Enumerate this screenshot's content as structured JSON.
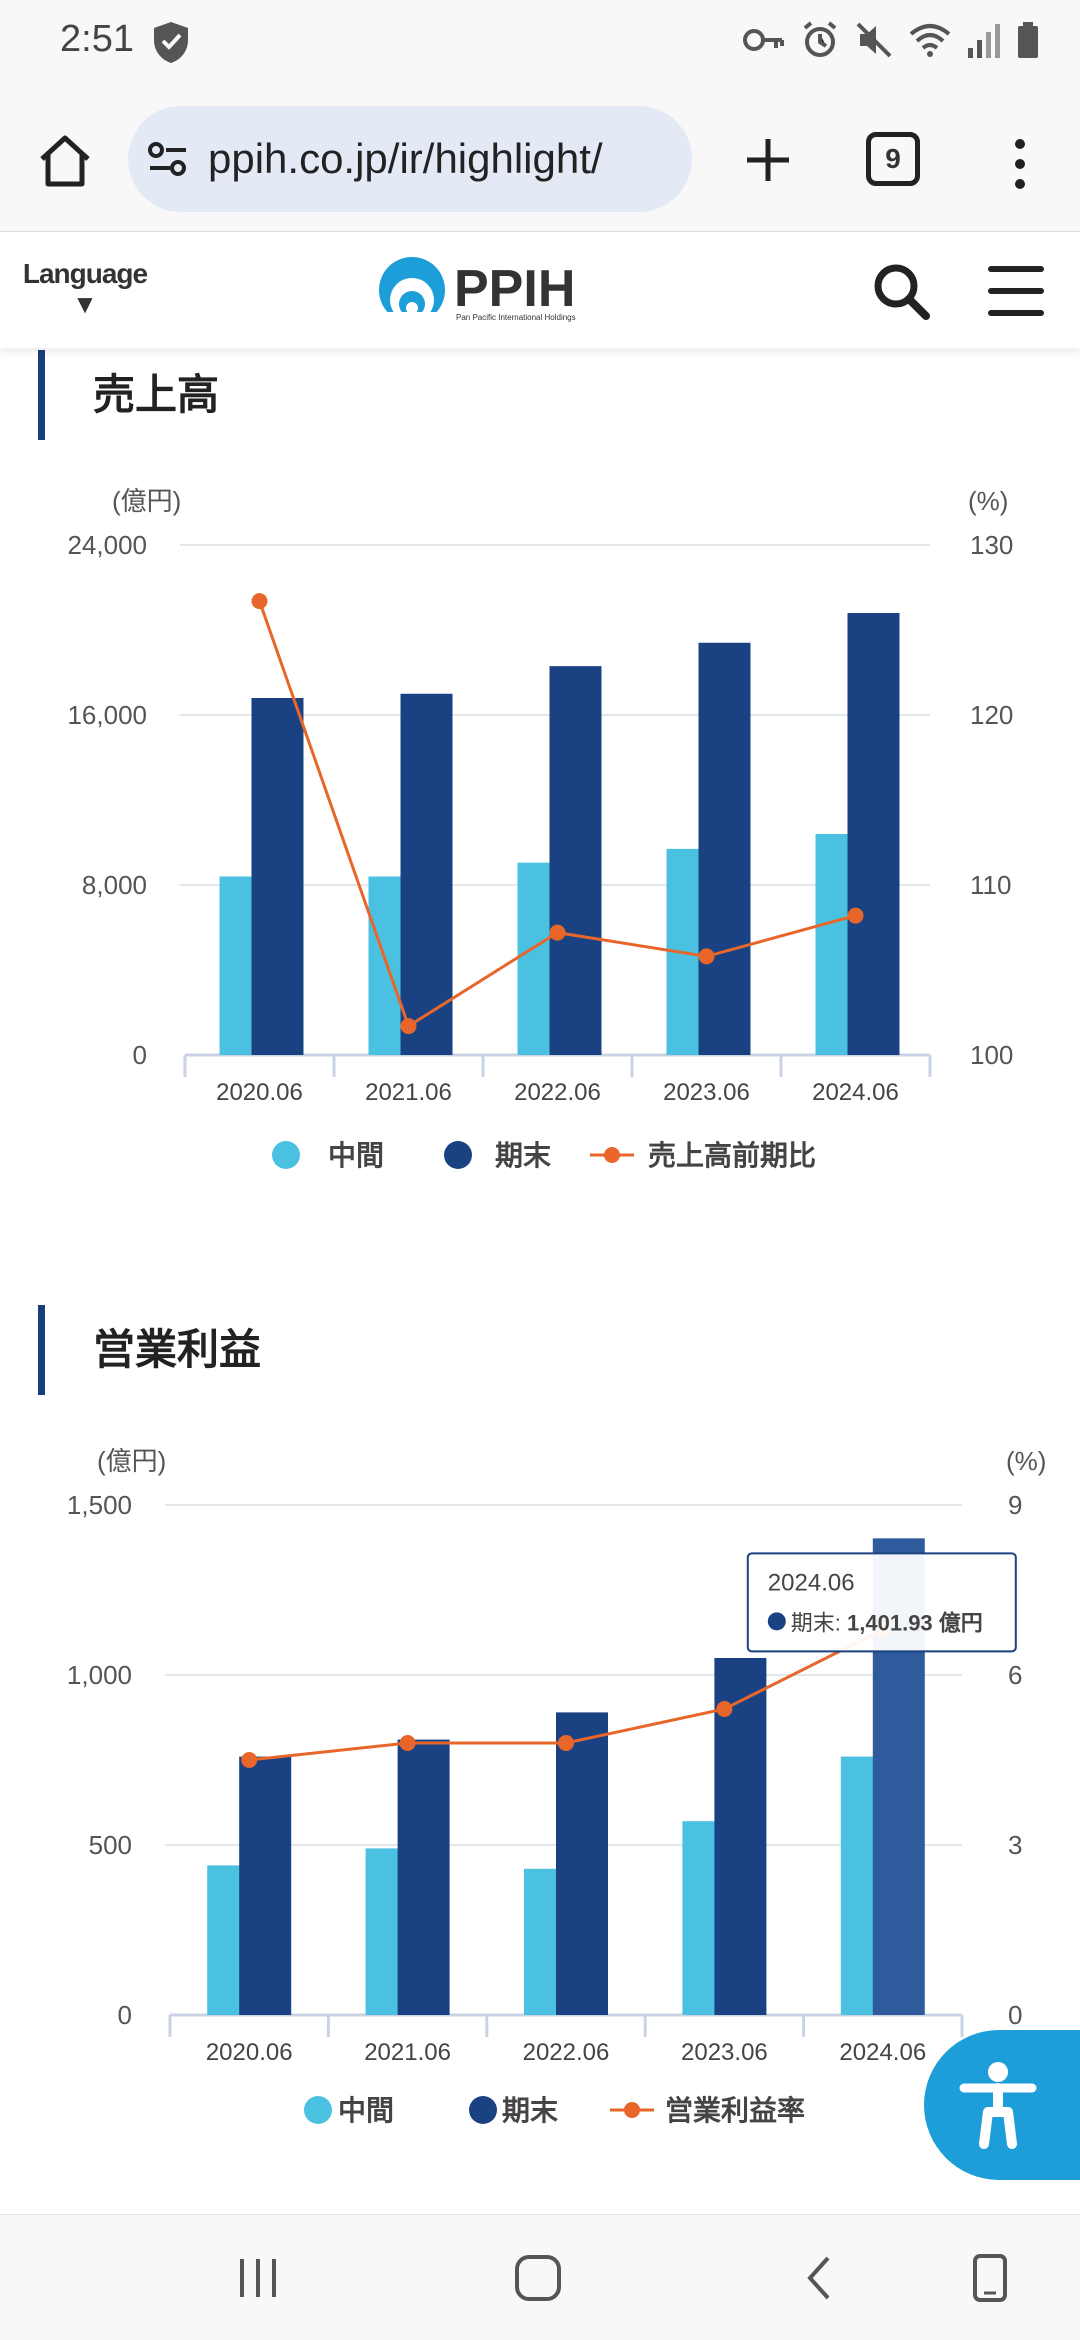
{
  "status_bar": {
    "time": "2:51",
    "icons": [
      "shield-icon",
      "key-icon",
      "alarm-icon",
      "mute-icon",
      "wifi-icon",
      "signal-icon",
      "battery-icon"
    ]
  },
  "browser": {
    "url": "ppih.co.jp/ir/highlight/",
    "tab_count": "9",
    "icons": [
      "home-icon",
      "page-info-icon",
      "new-tab-icon",
      "tab-switcher-icon",
      "more-menu-icon"
    ]
  },
  "site_header": {
    "language_label": "Language",
    "language_arrow": "▼",
    "logo_text": "PPIH",
    "logo_subtext": "Pan Pacific International Holdings",
    "icons": [
      "search-icon",
      "hamburger-menu-icon"
    ]
  },
  "sections": [
    {
      "title": "売上高"
    },
    {
      "title": "営業利益"
    }
  ],
  "chart_data": [
    {
      "type": "bar",
      "title": "売上高",
      "left_unit": "(億円)",
      "right_unit": "(%)",
      "categories": [
        "2020.06",
        "2021.06",
        "2022.06",
        "2023.06",
        "2024.06"
      ],
      "left_ticks": [
        "24,000",
        "16,000",
        "8,000",
        "0"
      ],
      "right_ticks": [
        "130",
        "120",
        "110",
        "100"
      ],
      "ylim": [
        0,
        24000
      ],
      "y2lim": [
        100,
        130
      ],
      "series": [
        {
          "name": "中間",
          "type": "bar",
          "axis": "left",
          "color": "#4bc1e2",
          "values": [
            8400,
            8400,
            9050,
            9700,
            10400
          ]
        },
        {
          "name": "期末",
          "type": "bar",
          "axis": "left",
          "color": "#1a4282",
          "values": [
            16800,
            17000,
            18300,
            19400,
            20800
          ]
        },
        {
          "name": "売上高前期比",
          "type": "line",
          "axis": "right",
          "color": "#e8662a",
          "values": [
            126.7,
            101.7,
            107.2,
            105.8,
            108.2
          ]
        }
      ],
      "grid": true,
      "legend_position": "bottom"
    },
    {
      "type": "bar",
      "title": "営業利益",
      "left_unit": "(億円)",
      "right_unit": "(%)",
      "categories": [
        "2020.06",
        "2021.06",
        "2022.06",
        "2023.06",
        "2024.06"
      ],
      "left_ticks": [
        "1,500",
        "1,000",
        "500",
        "0"
      ],
      "right_ticks": [
        "9",
        "6",
        "3",
        "0"
      ],
      "ylim": [
        0,
        1500
      ],
      "y2lim": [
        0,
        9
      ],
      "series": [
        {
          "name": "中間",
          "type": "bar",
          "axis": "left",
          "color": "#4bc1e2",
          "values": [
            440,
            490,
            430,
            570,
            760
          ]
        },
        {
          "name": "期末",
          "type": "bar",
          "axis": "left",
          "color": "#1a4282",
          "values": [
            760,
            810,
            890,
            1050,
            1401.93
          ]
        },
        {
          "name": "営業利益率",
          "type": "line",
          "axis": "right",
          "color": "#e8662a",
          "values": [
            4.5,
            4.8,
            4.8,
            5.4,
            6.8
          ]
        }
      ],
      "grid": true,
      "legend_position": "bottom",
      "tooltip": {
        "title": "2024.06",
        "label": "期末: ",
        "value": "1,401.93 億円",
        "category_index": 4
      }
    }
  ],
  "colors": {
    "accent": "#1a3e7a",
    "interim": "#4bc1e2",
    "final": "#1a4282",
    "line": "#e8662a",
    "accessibility_button": "#1e9ed8"
  },
  "nav_bar": {
    "icons": [
      "recent-apps-icon",
      "home-nav-icon",
      "back-icon",
      "rotate-icon"
    ]
  }
}
